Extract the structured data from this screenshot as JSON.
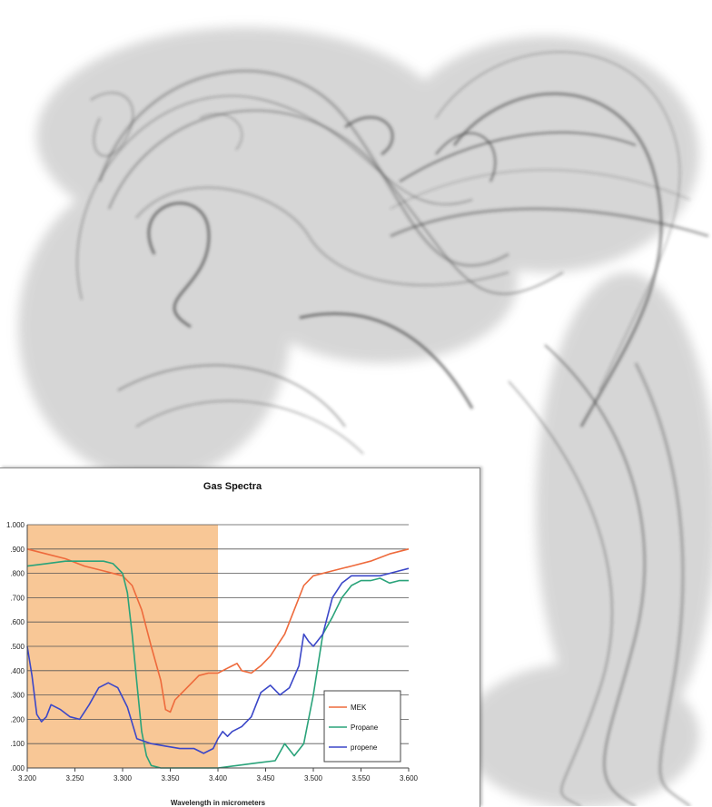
{
  "background": {
    "subject": "smoke-photo",
    "tint": "#5f5f5f"
  },
  "chart_data": {
    "type": "line",
    "title": "Gas Spectra",
    "xlabel": "Wavelength in micrometers",
    "ylabel": "",
    "xlim": [
      3.2,
      3.6
    ],
    "ylim": [
      0.0,
      1.0
    ],
    "x_ticks": [
      "3.200",
      "3.250",
      "3.300",
      "3.350",
      "3.400",
      "3.450",
      "3.500",
      "3.550",
      "3.600"
    ],
    "y_ticks": [
      ".000",
      ".100",
      ".200",
      ".300",
      ".400",
      ".500",
      ".600",
      ".700",
      ".800",
      ".900",
      "1.000"
    ],
    "grid": true,
    "legend_position": "bottom-right",
    "highlight_band": {
      "from": 3.2,
      "to": 3.4,
      "color": "#f6b97c"
    },
    "series": [
      {
        "name": "MEK",
        "color": "#ee6a3c",
        "points": [
          [
            3.2,
            0.9
          ],
          [
            3.22,
            0.88
          ],
          [
            3.24,
            0.86
          ],
          [
            3.26,
            0.83
          ],
          [
            3.28,
            0.81
          ],
          [
            3.3,
            0.79
          ],
          [
            3.31,
            0.75
          ],
          [
            3.32,
            0.65
          ],
          [
            3.33,
            0.5
          ],
          [
            3.34,
            0.36
          ],
          [
            3.345,
            0.24
          ],
          [
            3.35,
            0.23
          ],
          [
            3.355,
            0.28
          ],
          [
            3.36,
            0.3
          ],
          [
            3.37,
            0.34
          ],
          [
            3.38,
            0.38
          ],
          [
            3.39,
            0.39
          ],
          [
            3.4,
            0.39
          ],
          [
            3.41,
            0.41
          ],
          [
            3.42,
            0.43
          ],
          [
            3.425,
            0.4
          ],
          [
            3.435,
            0.39
          ],
          [
            3.445,
            0.42
          ],
          [
            3.455,
            0.46
          ],
          [
            3.47,
            0.55
          ],
          [
            3.48,
            0.65
          ],
          [
            3.49,
            0.75
          ],
          [
            3.5,
            0.79
          ],
          [
            3.52,
            0.81
          ],
          [
            3.54,
            0.83
          ],
          [
            3.56,
            0.85
          ],
          [
            3.58,
            0.88
          ],
          [
            3.6,
            0.9
          ]
        ]
      },
      {
        "name": "Propane",
        "color": "#2aa37a",
        "points": [
          [
            3.2,
            0.83
          ],
          [
            3.22,
            0.84
          ],
          [
            3.24,
            0.85
          ],
          [
            3.26,
            0.85
          ],
          [
            3.28,
            0.85
          ],
          [
            3.29,
            0.84
          ],
          [
            3.3,
            0.8
          ],
          [
            3.305,
            0.72
          ],
          [
            3.31,
            0.55
          ],
          [
            3.315,
            0.35
          ],
          [
            3.32,
            0.15
          ],
          [
            3.325,
            0.05
          ],
          [
            3.33,
            0.01
          ],
          [
            3.34,
            0.0
          ],
          [
            3.36,
            0.0
          ],
          [
            3.38,
            0.0
          ],
          [
            3.4,
            0.0
          ],
          [
            3.42,
            0.01
          ],
          [
            3.44,
            0.02
          ],
          [
            3.46,
            0.03
          ],
          [
            3.47,
            0.1
          ],
          [
            3.48,
            0.05
          ],
          [
            3.49,
            0.1
          ],
          [
            3.5,
            0.3
          ],
          [
            3.51,
            0.55
          ],
          [
            3.52,
            0.62
          ],
          [
            3.53,
            0.7
          ],
          [
            3.54,
            0.75
          ],
          [
            3.55,
            0.77
          ],
          [
            3.56,
            0.77
          ],
          [
            3.57,
            0.78
          ],
          [
            3.58,
            0.76
          ],
          [
            3.59,
            0.77
          ],
          [
            3.6,
            0.77
          ]
        ]
      },
      {
        "name": "propene",
        "color": "#3b47c8",
        "points": [
          [
            3.2,
            0.5
          ],
          [
            3.205,
            0.38
          ],
          [
            3.21,
            0.22
          ],
          [
            3.215,
            0.19
          ],
          [
            3.22,
            0.21
          ],
          [
            3.225,
            0.26
          ],
          [
            3.235,
            0.24
          ],
          [
            3.245,
            0.21
          ],
          [
            3.255,
            0.2
          ],
          [
            3.265,
            0.26
          ],
          [
            3.275,
            0.33
          ],
          [
            3.285,
            0.35
          ],
          [
            3.295,
            0.33
          ],
          [
            3.305,
            0.25
          ],
          [
            3.315,
            0.12
          ],
          [
            3.33,
            0.1
          ],
          [
            3.345,
            0.09
          ],
          [
            3.36,
            0.08
          ],
          [
            3.375,
            0.08
          ],
          [
            3.385,
            0.06
          ],
          [
            3.395,
            0.08
          ],
          [
            3.4,
            0.12
          ],
          [
            3.405,
            0.15
          ],
          [
            3.41,
            0.13
          ],
          [
            3.415,
            0.15
          ],
          [
            3.425,
            0.17
          ],
          [
            3.435,
            0.21
          ],
          [
            3.445,
            0.31
          ],
          [
            3.455,
            0.34
          ],
          [
            3.465,
            0.3
          ],
          [
            3.475,
            0.33
          ],
          [
            3.485,
            0.42
          ],
          [
            3.49,
            0.55
          ],
          [
            3.495,
            0.52
          ],
          [
            3.5,
            0.5
          ],
          [
            3.51,
            0.55
          ],
          [
            3.52,
            0.7
          ],
          [
            3.53,
            0.76
          ],
          [
            3.54,
            0.79
          ],
          [
            3.55,
            0.79
          ],
          [
            3.56,
            0.79
          ],
          [
            3.57,
            0.79
          ],
          [
            3.58,
            0.8
          ],
          [
            3.59,
            0.81
          ],
          [
            3.6,
            0.82
          ]
        ]
      }
    ]
  }
}
